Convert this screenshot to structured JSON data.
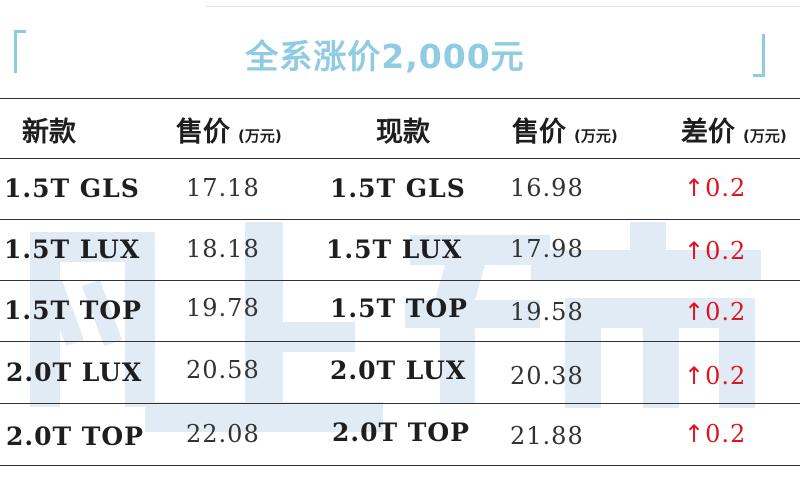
{
  "title": "全系涨价2,000元",
  "headers": {
    "new_model": "新款",
    "new_price": "售价",
    "new_price_unit": "(万元)",
    "cur_model": "现款",
    "cur_price": "售价",
    "cur_price_unit": "(万元)",
    "diff": "差价",
    "diff_unit": "(万元)"
  },
  "rows": [
    {
      "new_model": "1.5T GLS",
      "new_price": "17.18",
      "cur_model": "1.5T GLS",
      "cur_price": "16.98",
      "arrow": "↑",
      "diff": "0.2"
    },
    {
      "new_model": "1.5T LUX",
      "new_price": "18.18",
      "cur_model": "1.5T LUX",
      "cur_price": "17.98",
      "arrow": "↑",
      "diff": "0.2"
    },
    {
      "new_model": "1.5T TOP",
      "new_price": "19.78",
      "cur_model": "1.5T TOP",
      "cur_price": "19.58",
      "arrow": "↑",
      "diff": "0.2"
    },
    {
      "new_model": "2.0T LUX",
      "new_price": "20.58",
      "cur_model": "2.0T LUX",
      "cur_price": "20.38",
      "arrow": "↑",
      "diff": "0.2"
    },
    {
      "new_model": "2.0T TOP",
      "new_price": "22.08",
      "cur_model": "2.0T TOP",
      "cur_price": "21.88",
      "arrow": "↑",
      "diff": "0.2"
    }
  ],
  "watermark": "网上车市",
  "colors": {
    "title": "#8fcbe3",
    "increase": "#e0141e",
    "watermark": "#c9dbef"
  }
}
